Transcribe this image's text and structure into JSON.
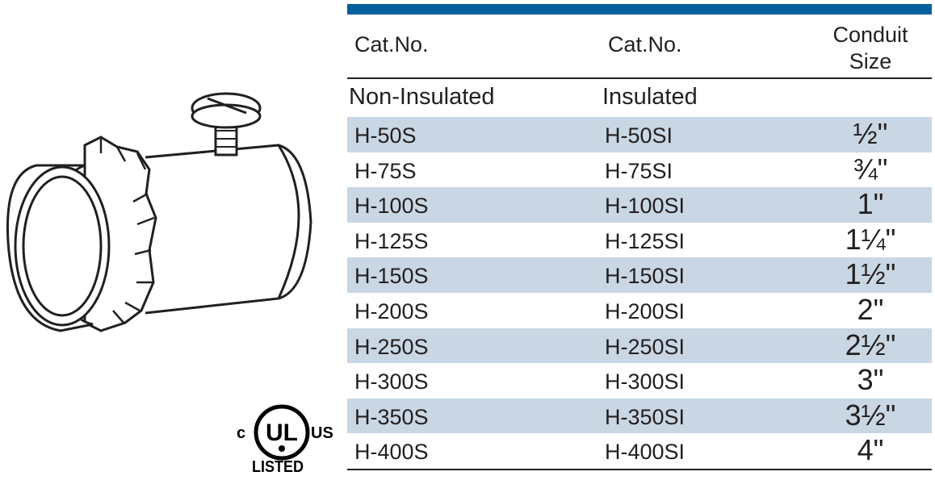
{
  "table": {
    "headers": {
      "cat_no_1": "Cat.No.",
      "cat_no_2": "Cat.No.",
      "conduit_line1": "Conduit",
      "conduit_line2": "Size"
    },
    "subheaders": {
      "col1": "Non-Insulated",
      "col2": "Insulated"
    },
    "rows": [
      {
        "non_insulated": "H-50S",
        "insulated": "H-50SI",
        "size": "½\""
      },
      {
        "non_insulated": "H-75S",
        "insulated": "H-75SI",
        "size": "¾\""
      },
      {
        "non_insulated": "H-100S",
        "insulated": "H-100SI",
        "size": "1\""
      },
      {
        "non_insulated": "H-125S",
        "insulated": "H-125SI",
        "size": "1¼\""
      },
      {
        "non_insulated": "H-150S",
        "insulated": "H-150SI",
        "size": "1½\""
      },
      {
        "non_insulated": "H-200S",
        "insulated": "H-200SI",
        "size": "2\""
      },
      {
        "non_insulated": "H-250S",
        "insulated": "H-250SI",
        "size": "2½\""
      },
      {
        "non_insulated": "H-300S",
        "insulated": "H-300SI",
        "size": "3\""
      },
      {
        "non_insulated": "H-350S",
        "insulated": "H-350SI",
        "size": "3½\""
      },
      {
        "non_insulated": "H-400S",
        "insulated": "H-400SI",
        "size": "4\""
      }
    ],
    "colors": {
      "accent_bar": "#00609b",
      "row_shade": "#c9d6e4"
    }
  },
  "ul_mark": {
    "c": "c",
    "ul": "UL",
    "us": "US",
    "listed": "LISTED"
  }
}
